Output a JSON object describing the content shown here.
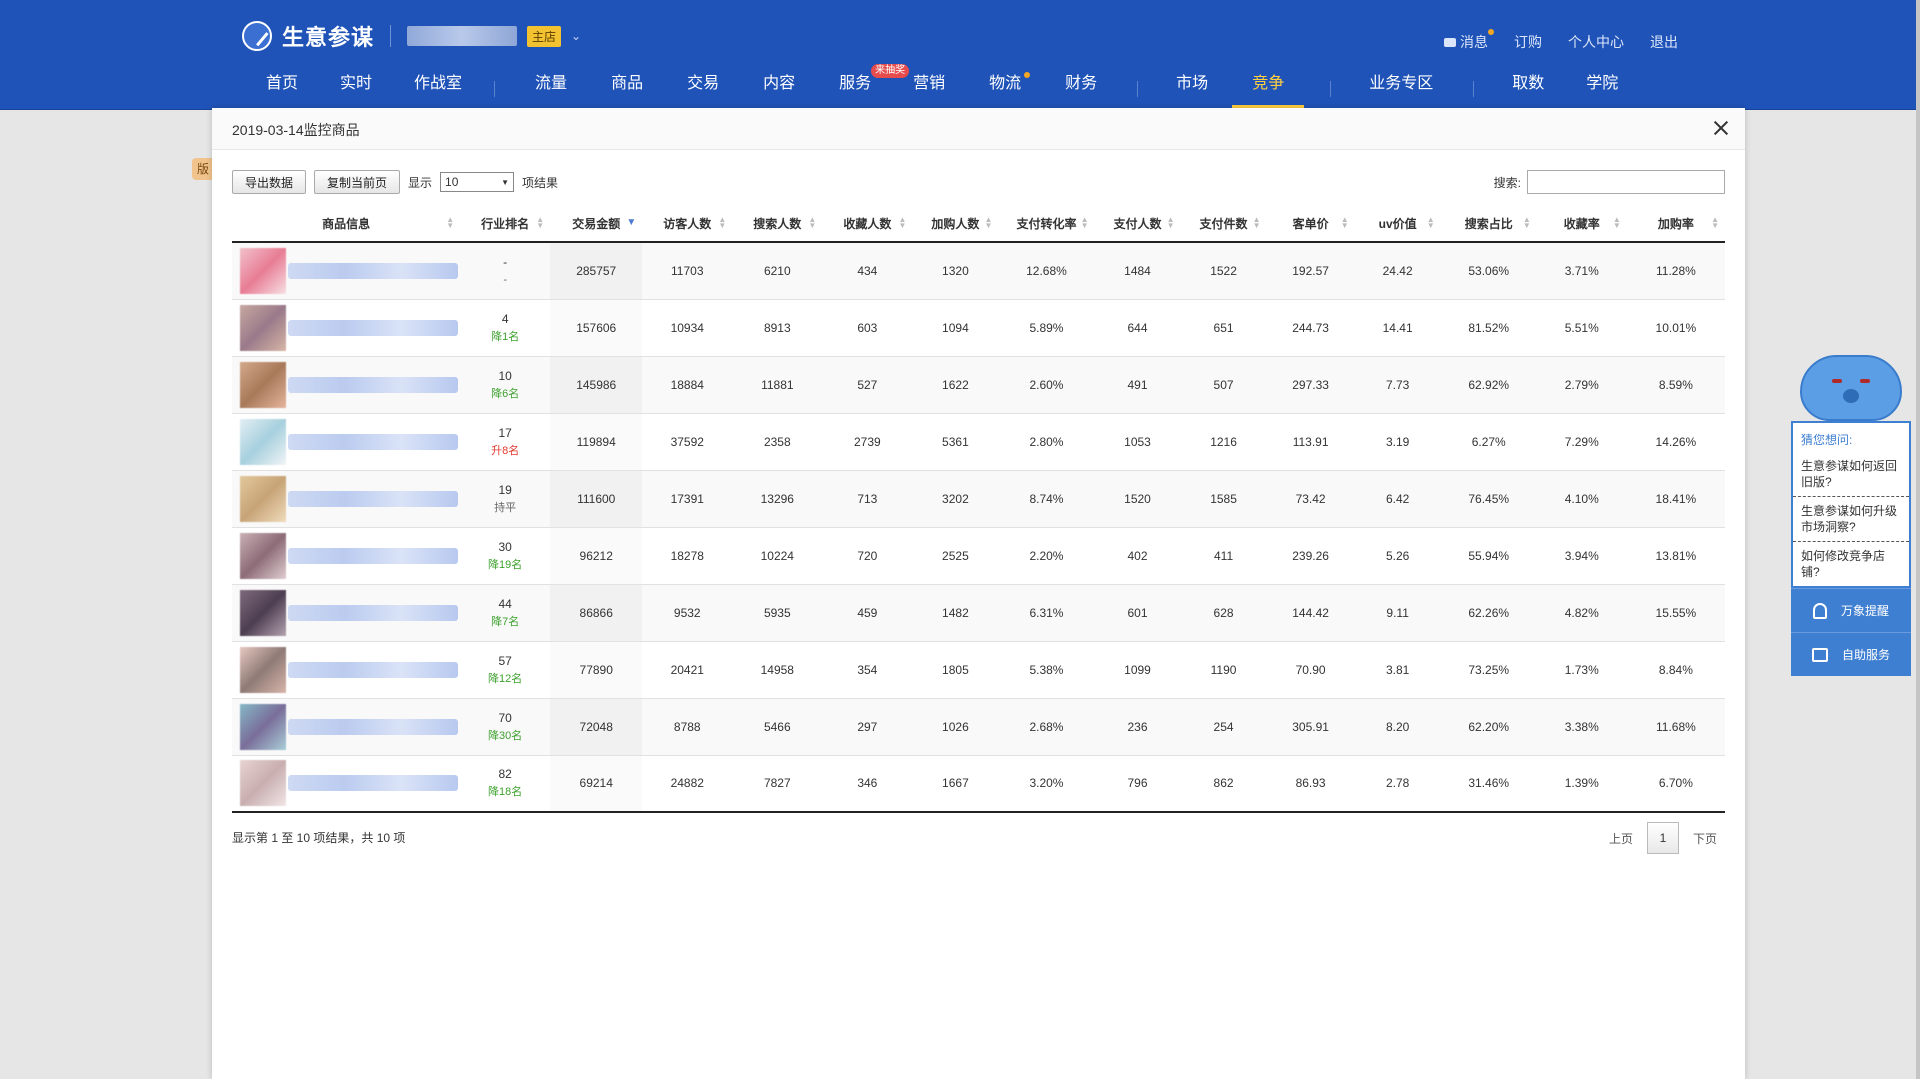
{
  "header": {
    "brand": "生意参谋",
    "shop_badge": "主店",
    "user_nav": [
      "消息",
      "订购",
      "个人中心",
      "退出"
    ],
    "nav": [
      {
        "label": "首页",
        "x": 0
      },
      {
        "label": "实时",
        "x": 0
      },
      {
        "label": "作战室",
        "x": 0
      },
      {
        "label": "流量",
        "x": 0
      },
      {
        "label": "商品",
        "x": 0
      },
      {
        "label": "交易",
        "x": 0
      },
      {
        "label": "内容",
        "x": 0
      },
      {
        "label": "服务",
        "badge": "来抽奖"
      },
      {
        "label": "营销"
      },
      {
        "label": "物流",
        "dot": true
      },
      {
        "label": "财务"
      },
      {
        "label": "市场"
      },
      {
        "label": "竞争",
        "active": true
      },
      {
        "label": "业务专区"
      },
      {
        "label": "取数"
      },
      {
        "label": "学院"
      }
    ],
    "left_stub": "版"
  },
  "modal": {
    "title": "2019-03-14监控商品",
    "export_label": "导出数据",
    "copy_label": "复制当前页",
    "show_label": "显示",
    "show_value": "10",
    "results_label": "项结果",
    "search_label": "搜索:",
    "columns": [
      "商品信息",
      "行业排名",
      "交易金额",
      "访客人数",
      "搜索人数",
      "收藏人数",
      "加购人数",
      "支付转化率",
      "支付人数",
      "支付件数",
      "客单价",
      "uv价值",
      "搜索占比",
      "收藏率",
      "加购率"
    ],
    "rows": [
      {
        "rank": "-",
        "change": "-",
        "dir": "flat",
        "vals": [
          "285757",
          "11703",
          "6210",
          "434",
          "1320",
          "12.68%",
          "1484",
          "1522",
          "192.57",
          "24.42",
          "53.06%",
          "3.71%",
          "11.28%"
        ],
        "thumb": [
          "#f2c1cb",
          "#e87d95",
          "#f7e0e4"
        ]
      },
      {
        "rank": "4",
        "change": "降1名",
        "dir": "down",
        "vals": [
          "157606",
          "10934",
          "8913",
          "603",
          "1094",
          "5.89%",
          "644",
          "651",
          "244.73",
          "14.41",
          "81.52%",
          "5.51%",
          "10.01%"
        ],
        "thumb": [
          "#c7a8a0",
          "#9a7a8a",
          "#d7b6a6"
        ]
      },
      {
        "rank": "10",
        "change": "降6名",
        "dir": "down",
        "vals": [
          "145986",
          "18884",
          "11881",
          "527",
          "1622",
          "2.60%",
          "491",
          "507",
          "297.33",
          "7.73",
          "62.92%",
          "2.79%",
          "8.59%"
        ],
        "thumb": [
          "#d3a88a",
          "#a87a5a",
          "#e6b49c"
        ]
      },
      {
        "rank": "17",
        "change": "升8名",
        "dir": "up",
        "vals": [
          "119894",
          "37592",
          "2358",
          "2739",
          "5361",
          "2.80%",
          "1053",
          "1216",
          "113.91",
          "3.19",
          "6.27%",
          "7.29%",
          "14.26%"
        ],
        "thumb": [
          "#e2eef3",
          "#a7d0de",
          "#f1f4f6"
        ]
      },
      {
        "rank": "19",
        "change": "持平",
        "dir": "flat",
        "vals": [
          "111600",
          "17391",
          "13296",
          "713",
          "3202",
          "8.74%",
          "1520",
          "1585",
          "73.42",
          "6.42",
          "76.45%",
          "4.10%",
          "18.41%"
        ],
        "thumb": [
          "#e2c89c",
          "#c7a477",
          "#f0dcbc"
        ]
      },
      {
        "rank": "30",
        "change": "降19名",
        "dir": "down",
        "vals": [
          "96212",
          "18278",
          "10224",
          "720",
          "2525",
          "2.20%",
          "402",
          "411",
          "239.26",
          "5.26",
          "55.94%",
          "3.94%",
          "13.81%"
        ],
        "thumb": [
          "#c9b0b5",
          "#8d6c78",
          "#e1cfd2"
        ]
      },
      {
        "rank": "44",
        "change": "降7名",
        "dir": "down",
        "vals": [
          "86866",
          "9532",
          "5935",
          "459",
          "1482",
          "6.31%",
          "601",
          "628",
          "144.42",
          "9.11",
          "62.26%",
          "4.82%",
          "15.55%"
        ],
        "thumb": [
          "#7e6a7c",
          "#4e3e52",
          "#b3a3b0"
        ]
      },
      {
        "rank": "57",
        "change": "降12名",
        "dir": "down",
        "vals": [
          "77890",
          "20421",
          "14958",
          "354",
          "1805",
          "5.38%",
          "1099",
          "1190",
          "70.90",
          "3.81",
          "73.25%",
          "1.73%",
          "8.84%"
        ],
        "thumb": [
          "#e6c8c0",
          "#8f7b76",
          "#d8b5aa"
        ]
      },
      {
        "rank": "70",
        "change": "降30名",
        "dir": "down",
        "vals": [
          "72048",
          "8788",
          "5466",
          "297",
          "1026",
          "2.68%",
          "236",
          "254",
          "305.91",
          "8.20",
          "62.20%",
          "3.38%",
          "11.68%"
        ],
        "thumb": [
          "#86b8c6",
          "#7a6e9a",
          "#a9cfd8"
        ]
      },
      {
        "rank": "82",
        "change": "降18名",
        "dir": "down",
        "vals": [
          "69214",
          "24882",
          "7827",
          "346",
          "1667",
          "3.20%",
          "796",
          "862",
          "86.93",
          "2.78",
          "31.46%",
          "1.39%",
          "6.70%"
        ],
        "thumb": [
          "#e8d3d3",
          "#c9aeb0",
          "#f1e6e6"
        ]
      }
    ],
    "footer_info": "显示第 1 至 10 项结果，共 10 项",
    "prev_label": "上页",
    "page_current": "1",
    "next_label": "下页"
  },
  "helper": {
    "title": "猜您想问:",
    "questions": [
      "生意参谋如何返回旧版?",
      "生意参谋如何升级市场洞察?",
      "如何修改竞争店铺?"
    ],
    "btn_alert": "万象提醒",
    "btn_service": "自助服务"
  }
}
